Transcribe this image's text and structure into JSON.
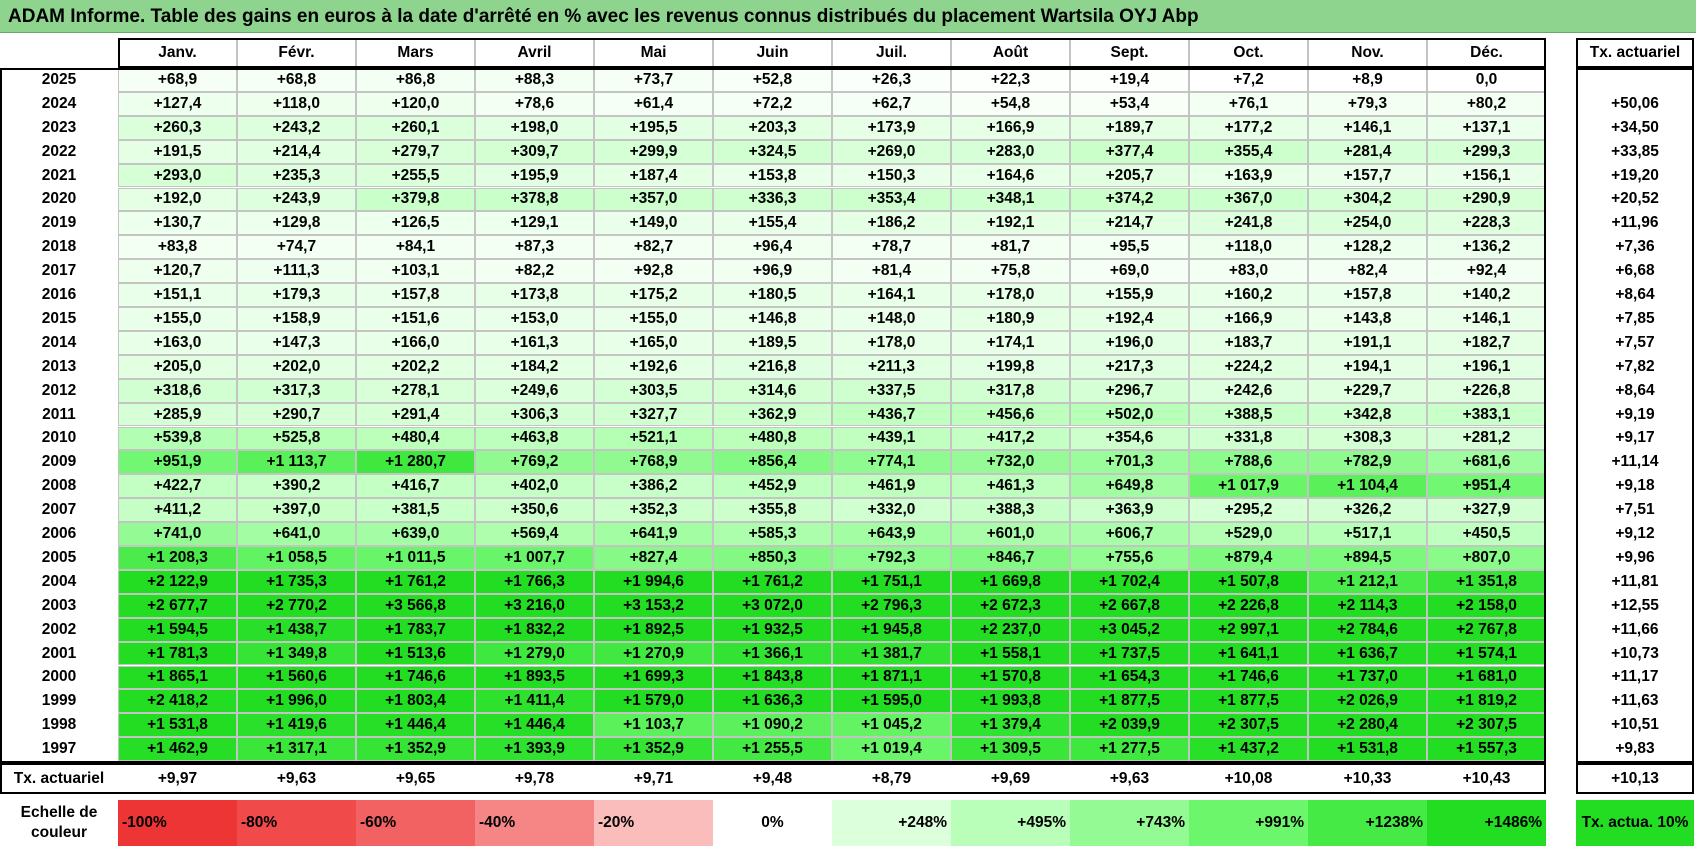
{
  "title": "ADAM Informe. Table des gains en euros à la date d'arrêté en % avec les revenus connus distribués du placement Wartsila OYJ Abp",
  "table": {
    "columns": [
      "Janv.",
      "Févr.",
      "Mars",
      "Avril",
      "Mai",
      "Juin",
      "Juil.",
      "Août",
      "Sept.",
      "Oct.",
      "Nov.",
      "Déc."
    ],
    "rate_header": "Tx. actuariel",
    "rows": [
      {
        "year": "2025",
        "values": [
          "+68,9",
          "+68,8",
          "+86,8",
          "+88,3",
          "+73,7",
          "+52,8",
          "+26,3",
          "+22,3",
          "+19,4",
          "+7,2",
          "+8,9",
          "0,0"
        ]
      },
      {
        "year": "2024",
        "values": [
          "+127,4",
          "+118,0",
          "+120,0",
          "+78,6",
          "+61,4",
          "+72,2",
          "+62,7",
          "+54,8",
          "+53,4",
          "+76,1",
          "+79,3",
          "+80,2"
        ],
        "rate": "+50,06"
      },
      {
        "year": "2023",
        "values": [
          "+260,3",
          "+243,2",
          "+260,1",
          "+198,0",
          "+195,5",
          "+203,3",
          "+173,9",
          "+166,9",
          "+189,7",
          "+177,2",
          "+146,1",
          "+137,1"
        ],
        "rate": "+34,50"
      },
      {
        "year": "2022",
        "values": [
          "+191,5",
          "+214,4",
          "+279,7",
          "+309,7",
          "+299,9",
          "+324,5",
          "+269,0",
          "+283,0",
          "+377,4",
          "+355,4",
          "+281,4",
          "+299,3"
        ],
        "rate": "+33,85"
      },
      {
        "year": "2021",
        "values": [
          "+293,0",
          "+235,3",
          "+255,5",
          "+195,9",
          "+187,4",
          "+153,8",
          "+150,3",
          "+164,6",
          "+205,7",
          "+163,9",
          "+157,7",
          "+156,1"
        ],
        "rate": "+19,20"
      },
      {
        "year": "2020",
        "values": [
          "+192,0",
          "+243,9",
          "+379,8",
          "+378,8",
          "+357,0",
          "+336,3",
          "+353,4",
          "+348,1",
          "+374,2",
          "+367,0",
          "+304,2",
          "+290,9"
        ],
        "rate": "+20,52"
      },
      {
        "year": "2019",
        "values": [
          "+130,7",
          "+129,8",
          "+126,5",
          "+129,1",
          "+149,0",
          "+155,4",
          "+186,2",
          "+192,1",
          "+214,7",
          "+241,8",
          "+254,0",
          "+228,3"
        ],
        "rate": "+11,96"
      },
      {
        "year": "2018",
        "values": [
          "+83,8",
          "+74,7",
          "+84,1",
          "+87,3",
          "+82,7",
          "+96,4",
          "+78,7",
          "+81,7",
          "+95,5",
          "+118,0",
          "+128,2",
          "+136,2"
        ],
        "rate": "+7,36"
      },
      {
        "year": "2017",
        "values": [
          "+120,7",
          "+111,3",
          "+103,1",
          "+82,2",
          "+92,8",
          "+96,9",
          "+81,4",
          "+75,8",
          "+69,0",
          "+83,0",
          "+82,4",
          "+92,4"
        ],
        "rate": "+6,68"
      },
      {
        "year": "2016",
        "values": [
          "+151,1",
          "+179,3",
          "+157,8",
          "+173,8",
          "+175,2",
          "+180,5",
          "+164,1",
          "+178,0",
          "+155,9",
          "+160,2",
          "+157,8",
          "+140,2"
        ],
        "rate": "+8,64"
      },
      {
        "year": "2015",
        "values": [
          "+155,0",
          "+158,9",
          "+151,6",
          "+153,0",
          "+155,0",
          "+146,8",
          "+148,0",
          "+180,9",
          "+192,4",
          "+166,9",
          "+143,8",
          "+146,1"
        ],
        "rate": "+7,85"
      },
      {
        "year": "2014",
        "values": [
          "+163,0",
          "+147,3",
          "+166,0",
          "+161,3",
          "+165,0",
          "+189,5",
          "+178,0",
          "+174,1",
          "+196,0",
          "+183,7",
          "+191,1",
          "+182,7"
        ],
        "rate": "+7,57"
      },
      {
        "year": "2013",
        "values": [
          "+205,0",
          "+202,0",
          "+202,2",
          "+184,2",
          "+192,6",
          "+216,8",
          "+211,3",
          "+199,8",
          "+217,3",
          "+224,2",
          "+194,1",
          "+196,1"
        ],
        "rate": "+7,82"
      },
      {
        "year": "2012",
        "values": [
          "+318,6",
          "+317,3",
          "+278,1",
          "+249,6",
          "+303,5",
          "+314,6",
          "+337,5",
          "+317,8",
          "+296,7",
          "+242,6",
          "+229,7",
          "+226,8"
        ],
        "rate": "+8,64"
      },
      {
        "year": "2011",
        "values": [
          "+285,9",
          "+290,7",
          "+291,4",
          "+306,3",
          "+327,7",
          "+362,9",
          "+436,7",
          "+456,6",
          "+502,0",
          "+388,5",
          "+342,8",
          "+383,1"
        ],
        "rate": "+9,19"
      },
      {
        "year": "2010",
        "values": [
          "+539,8",
          "+525,8",
          "+480,4",
          "+463,8",
          "+521,1",
          "+480,8",
          "+439,1",
          "+417,2",
          "+354,6",
          "+331,8",
          "+308,3",
          "+281,2"
        ],
        "rate": "+9,17"
      },
      {
        "year": "2009",
        "values": [
          "+951,9",
          "+1 113,7",
          "+1 280,7",
          "+769,2",
          "+768,9",
          "+856,4",
          "+774,1",
          "+732,0",
          "+701,3",
          "+788,6",
          "+782,9",
          "+681,6"
        ],
        "rate": "+11,14"
      },
      {
        "year": "2008",
        "values": [
          "+422,7",
          "+390,2",
          "+416,7",
          "+402,0",
          "+386,2",
          "+452,9",
          "+461,9",
          "+461,3",
          "+649,8",
          "+1 017,9",
          "+1 104,4",
          "+951,4"
        ],
        "rate": "+9,18"
      },
      {
        "year": "2007",
        "values": [
          "+411,2",
          "+397,0",
          "+381,5",
          "+350,6",
          "+352,3",
          "+355,8",
          "+332,0",
          "+388,3",
          "+363,9",
          "+295,2",
          "+326,2",
          "+327,9"
        ],
        "rate": "+7,51"
      },
      {
        "year": "2006",
        "values": [
          "+741,0",
          "+641,0",
          "+639,0",
          "+569,4",
          "+641,9",
          "+585,3",
          "+643,9",
          "+601,0",
          "+606,7",
          "+529,0",
          "+517,1",
          "+450,5"
        ],
        "rate": "+9,12"
      },
      {
        "year": "2005",
        "values": [
          "+1 208,3",
          "+1 058,5",
          "+1 011,5",
          "+1 007,7",
          "+827,4",
          "+850,3",
          "+792,3",
          "+846,7",
          "+755,6",
          "+879,4",
          "+894,5",
          "+807,0"
        ],
        "rate": "+9,96"
      },
      {
        "year": "2004",
        "values": [
          "+2 122,9",
          "+1 735,3",
          "+1 761,2",
          "+1 766,3",
          "+1 994,6",
          "+1 761,2",
          "+1 751,1",
          "+1 669,8",
          "+1 702,4",
          "+1 507,8",
          "+1 212,1",
          "+1 351,8"
        ],
        "rate": "+11,81"
      },
      {
        "year": "2003",
        "values": [
          "+2 677,7",
          "+2 770,2",
          "+3 566,8",
          "+3 216,0",
          "+3 153,2",
          "+3 072,0",
          "+2 796,3",
          "+2 672,3",
          "+2 667,8",
          "+2 226,8",
          "+2 114,3",
          "+2 158,0"
        ],
        "rate": "+12,55"
      },
      {
        "year": "2002",
        "values": [
          "+1 594,5",
          "+1 438,7",
          "+1 783,7",
          "+1 832,2",
          "+1 892,5",
          "+1 932,5",
          "+1 945,8",
          "+2 237,0",
          "+3 045,2",
          "+2 997,1",
          "+2 784,6",
          "+2 767,8"
        ],
        "rate": "+11,66"
      },
      {
        "year": "2001",
        "values": [
          "+1 781,3",
          "+1 349,8",
          "+1 513,6",
          "+1 279,0",
          "+1 270,9",
          "+1 366,1",
          "+1 381,7",
          "+1 558,1",
          "+1 737,5",
          "+1 641,1",
          "+1 636,7",
          "+1 574,1"
        ],
        "rate": "+10,73"
      },
      {
        "year": "2000",
        "values": [
          "+1 865,1",
          "+1 560,6",
          "+1 746,6",
          "+1 893,5",
          "+1 699,3",
          "+1 843,8",
          "+1 871,1",
          "+1 570,8",
          "+1 654,3",
          "+1 746,6",
          "+1 737,0",
          "+1 681,0"
        ],
        "rate": "+11,17"
      },
      {
        "year": "1999",
        "values": [
          "+2 418,2",
          "+1 996,0",
          "+1 803,4",
          "+1 411,4",
          "+1 579,0",
          "+1 636,3",
          "+1 595,0",
          "+1 993,8",
          "+1 877,5",
          "+1 877,5",
          "+2 026,9",
          "+1 819,2"
        ],
        "rate": "+11,63"
      },
      {
        "year": "1998",
        "values": [
          "+1 531,8",
          "+1 419,6",
          "+1 446,4",
          "+1 446,4",
          "+1 103,7",
          "+1 090,2",
          "+1 045,2",
          "+1 379,4",
          "+2 039,9",
          "+2 307,5",
          "+2 280,4",
          "+2 307,5"
        ],
        "rate": "+10,51"
      },
      {
        "year": "1997",
        "values": [
          "+1 462,9",
          "+1 317,1",
          "+1 352,9",
          "+1 393,9",
          "+1 352,9",
          "+1 255,5",
          "+1 019,4",
          "+1 309,5",
          "+1 277,5",
          "+1 437,2",
          "+1 531,8",
          "+1 557,3"
        ],
        "rate": "+9,83"
      }
    ],
    "footer": {
      "label": "Tx. actuariel",
      "values": [
        "+9,97",
        "+9,63",
        "+9,65",
        "+9,78",
        "+9,71",
        "+9,48",
        "+8,79",
        "+9,69",
        "+9,63",
        "+10,08",
        "+10,33",
        "+10,43"
      ],
      "rate": "+10,13"
    }
  },
  "scale": {
    "label": "Echelle de couleur",
    "steps": [
      {
        "label": "-100%",
        "color": "#ee3535"
      },
      {
        "label": "-80%",
        "color": "#f04a4a"
      },
      {
        "label": "-60%",
        "color": "#f36262"
      },
      {
        "label": "-40%",
        "color": "#f68585"
      },
      {
        "label": "-20%",
        "color": "#fbbcbc"
      },
      {
        "label": "0%",
        "color": "#ffffff"
      },
      {
        "label": "+248%",
        "color": "#dcffdc"
      },
      {
        "label": "+495%",
        "color": "#b9ffb9"
      },
      {
        "label": "+743%",
        "color": "#94fb94"
      },
      {
        "label": "+991%",
        "color": "#6cf66c"
      },
      {
        "label": "+1238%",
        "color": "#45ea45"
      },
      {
        "label": "+1486%",
        "color": "#22dd22"
      }
    ],
    "rate_note": {
      "label": "Tx. actua. 10%",
      "color": "#22dd22"
    }
  }
}
